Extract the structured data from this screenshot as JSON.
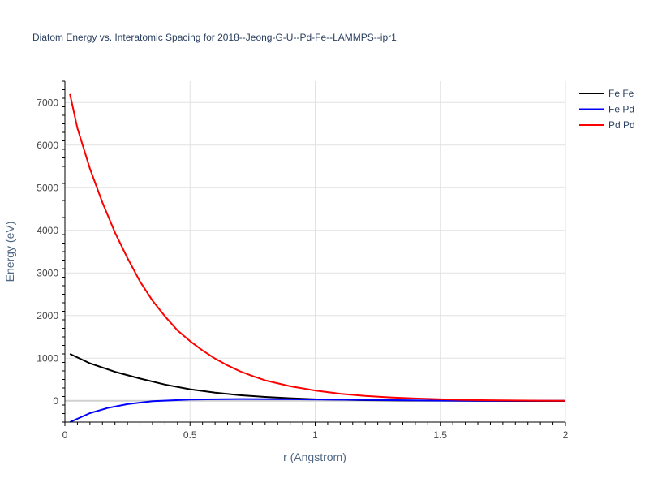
{
  "chart_data": {
    "type": "line",
    "title": "Diatom Energy vs. Interatomic Spacing for 2018--Jeong-G-U--Pd-Fe--LAMMPS--ipr1",
    "xlabel": "r (Angstrom)",
    "ylabel": "Energy (eV)",
    "xlim": [
      0,
      2
    ],
    "ylim": [
      -500,
      7500
    ],
    "x_ticks": [
      0,
      0.5,
      1,
      1.5,
      2
    ],
    "x_tick_labels": [
      "0",
      "0.5",
      "1",
      "1.5",
      "2"
    ],
    "y_ticks": [
      0,
      1000,
      2000,
      3000,
      4000,
      5000,
      6000,
      7000
    ],
    "y_tick_labels": [
      "0",
      "1000",
      "2000",
      "3000",
      "4000",
      "5000",
      "6000",
      "7000"
    ],
    "grid": true,
    "legend_position": "top-right",
    "series": [
      {
        "name": "Fe Fe",
        "color": "#000000",
        "x": [
          0.02,
          0.1,
          0.2,
          0.3,
          0.4,
          0.5,
          0.6,
          0.7,
          0.8,
          0.9,
          1.0,
          1.2,
          1.4,
          1.6,
          1.8,
          2.0
        ],
        "y": [
          1100,
          880,
          680,
          520,
          380,
          270,
          190,
          130,
          90,
          60,
          35,
          15,
          5,
          0,
          -5,
          -5
        ]
      },
      {
        "name": "Fe Pd",
        "color": "#0000ff",
        "x": [
          0.02,
          0.1,
          0.17,
          0.25,
          0.35,
          0.5,
          0.7,
          0.9,
          1.1,
          1.3,
          1.5,
          1.7,
          2.0
        ],
        "y": [
          -500,
          -290,
          -170,
          -80,
          -10,
          30,
          40,
          35,
          25,
          15,
          5,
          0,
          0
        ]
      },
      {
        "name": "Pd Pd",
        "color": "#ff0000",
        "x": [
          0.02,
          0.05,
          0.1,
          0.15,
          0.2,
          0.25,
          0.3,
          0.35,
          0.4,
          0.45,
          0.5,
          0.55,
          0.6,
          0.65,
          0.7,
          0.75,
          0.8,
          0.9,
          1.0,
          1.1,
          1.2,
          1.3,
          1.4,
          1.5,
          1.6,
          1.7,
          1.8,
          1.9,
          2.0
        ],
        "y": [
          7200,
          6400,
          5450,
          4650,
          3950,
          3350,
          2800,
          2350,
          1980,
          1650,
          1400,
          1180,
          990,
          830,
          690,
          580,
          480,
          340,
          240,
          165,
          115,
          80,
          55,
          35,
          20,
          12,
          6,
          3,
          0
        ]
      }
    ]
  }
}
